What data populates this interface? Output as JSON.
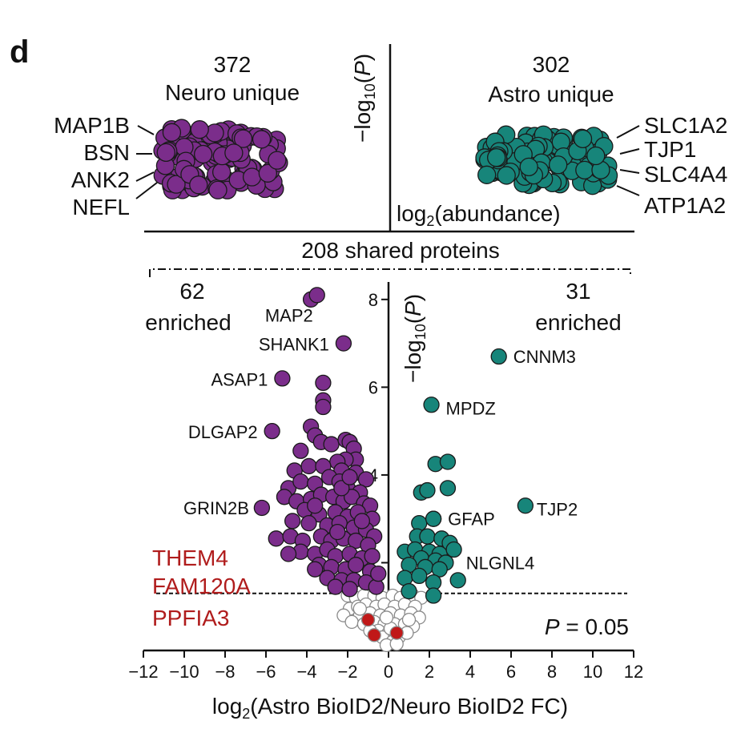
{
  "panel_letter": "d",
  "top": {
    "neuro": {
      "count": "372",
      "label": "Neuro unique"
    },
    "astro": {
      "count": "302",
      "label": "Astro unique"
    },
    "yaxis_label": "−log10(P)",
    "xaxis_label": "log2(abundance)",
    "neuro_genes": [
      "MAP1B",
      "BSN",
      "ANK2",
      "NEFL"
    ],
    "astro_genes": [
      "SLC1A2",
      "TJP1",
      "SLC4A4",
      "ATP1A2"
    ]
  },
  "shared_label": "208 shared proteins",
  "left_enriched": {
    "count": "62",
    "label": "enriched"
  },
  "right_enriched": {
    "count": "31",
    "label": "enriched"
  },
  "threshold_label": "P = 0.05",
  "colors": {
    "neuro": "#7b2d8b",
    "astro": "#17857a",
    "nonsig": "#ffffff",
    "highlight": "#c01818",
    "highlight_text": "#b01c1c"
  },
  "chart_data": {
    "type": "scatter",
    "xlabel": "log2(Astro BioID2/Neuro BioID2 FC)",
    "ylabel": "−log10(P)",
    "xlim": [
      -12,
      12
    ],
    "ylim": [
      0,
      8.8
    ],
    "xticks": [
      -12,
      -10,
      -8,
      -6,
      -4,
      -2,
      0,
      2,
      4,
      6,
      8,
      10,
      12
    ],
    "yticks": [
      2,
      4,
      6,
      8
    ],
    "threshold_y": 1.3,
    "labeled_points": [
      {
        "name": "MAP2",
        "x": -3.5,
        "y": 8.1,
        "group": "neuro"
      },
      {
        "name": "SHANK1",
        "x": -2.2,
        "y": 7.0,
        "group": "neuro"
      },
      {
        "name": "ASAP1",
        "x": -5.2,
        "y": 6.2,
        "group": "neuro"
      },
      {
        "name": "DLGAP2",
        "x": -5.7,
        "y": 5.0,
        "group": "neuro"
      },
      {
        "name": "GRIN2B",
        "x": -6.2,
        "y": 3.25,
        "group": "neuro"
      },
      {
        "name": "CNNM3",
        "x": 5.4,
        "y": 6.7,
        "group": "astro"
      },
      {
        "name": "MPDZ",
        "x": 2.1,
        "y": 5.6,
        "group": "astro"
      },
      {
        "name": "TJP2",
        "x": 6.7,
        "y": 3.3,
        "group": "astro"
      },
      {
        "name": "GFAP",
        "x": 2.2,
        "y": 3.0,
        "group": "astro"
      },
      {
        "name": "NLGNL4",
        "x": 3.4,
        "y": 1.6,
        "group": "astro"
      }
    ],
    "highlighted": [
      {
        "name": "THEM4",
        "x": -1.0,
        "y": 0.7
      },
      {
        "name": "FAM120A",
        "x": -0.7,
        "y": 0.35
      },
      {
        "name": "PPFIA3",
        "x": 0.4,
        "y": 0.4
      }
    ],
    "neuro_points": [
      [
        -3.8,
        8.0
      ],
      [
        -3.2,
        6.1
      ],
      [
        -3.2,
        5.7
      ],
      [
        -3.2,
        5.55
      ],
      [
        -3.8,
        5.1
      ],
      [
        -3.6,
        4.9
      ],
      [
        -3.3,
        4.75
      ],
      [
        -2.8,
        4.7
      ],
      [
        -2.1,
        4.8
      ],
      [
        -1.9,
        4.75
      ],
      [
        -1.7,
        4.6
      ],
      [
        -1.6,
        4.35
      ],
      [
        -2.1,
        4.35
      ],
      [
        -2.5,
        4.3
      ],
      [
        -4.3,
        4.55
      ],
      [
        -4.6,
        4.1
      ],
      [
        -3.9,
        4.2
      ],
      [
        -3.2,
        4.2
      ],
      [
        -2.3,
        4.1
      ],
      [
        -1.6,
        4.05
      ],
      [
        -1.1,
        3.9
      ],
      [
        -4.9,
        3.7
      ],
      [
        -4.3,
        3.85
      ],
      [
        -3.6,
        3.8
      ],
      [
        -2.9,
        3.95
      ],
      [
        -2.4,
        3.85
      ],
      [
        -2.0,
        3.7
      ],
      [
        -1.4,
        3.6
      ],
      [
        -5.1,
        3.5
      ],
      [
        -4.5,
        3.4
      ],
      [
        -3.8,
        3.45
      ],
      [
        -3.3,
        3.55
      ],
      [
        -2.7,
        3.5
      ],
      [
        -2.2,
        3.4
      ],
      [
        -1.8,
        3.5
      ],
      [
        -1.2,
        3.35
      ],
      [
        -0.9,
        3.3
      ],
      [
        -4.1,
        3.2
      ],
      [
        -3.4,
        3.1
      ],
      [
        -2.6,
        3.15
      ],
      [
        -2.0,
        3.05
      ],
      [
        -1.5,
        3.15
      ],
      [
        -0.8,
        3.0
      ],
      [
        -4.7,
        2.95
      ],
      [
        -3.9,
        2.9
      ],
      [
        -3.0,
        2.85
      ],
      [
        -2.4,
        2.9
      ],
      [
        -1.7,
        2.8
      ],
      [
        -1.1,
        2.75
      ],
      [
        -0.7,
        2.6
      ],
      [
        -5.5,
        2.55
      ],
      [
        -4.8,
        2.6
      ],
      [
        -4.2,
        2.5
      ],
      [
        -3.3,
        2.6
      ],
      [
        -2.8,
        2.5
      ],
      [
        -2.2,
        2.55
      ],
      [
        -1.6,
        2.5
      ],
      [
        -1.0,
        2.4
      ],
      [
        -4.3,
        2.25
      ],
      [
        -3.6,
        2.2
      ],
      [
        -3.0,
        2.3
      ],
      [
        -2.6,
        2.15
      ],
      [
        -1.9,
        2.2
      ],
      [
        -1.3,
        2.1
      ],
      [
        -0.8,
        2.15
      ],
      [
        -4.9,
        2.2
      ],
      [
        -3.4,
        1.95
      ],
      [
        -2.8,
        1.9
      ],
      [
        -2.1,
        1.85
      ],
      [
        -1.6,
        1.95
      ],
      [
        -0.9,
        1.8
      ],
      [
        -3.0,
        1.65
      ],
      [
        -2.3,
        1.6
      ],
      [
        -1.7,
        1.6
      ],
      [
        -1.1,
        1.55
      ],
      [
        -0.6,
        1.45
      ],
      [
        -2.6,
        1.45
      ],
      [
        -1.9,
        1.4
      ],
      [
        -3.6,
        1.85
      ],
      [
        -0.5,
        1.75
      ],
      [
        -2.3,
        3.7
      ],
      [
        -1.3,
        2.95
      ],
      [
        -2.5,
        2.7
      ],
      [
        -3.6,
        3.3
      ],
      [
        -1.9,
        3.95
      ]
    ],
    "astro_points": [
      [
        2.3,
        4.25
      ],
      [
        2.9,
        4.3
      ],
      [
        1.6,
        3.6
      ],
      [
        1.9,
        3.65
      ],
      [
        2.9,
        3.7
      ],
      [
        2.2,
        3.0
      ],
      [
        1.5,
        2.9
      ],
      [
        1.4,
        2.6
      ],
      [
        1.9,
        2.6
      ],
      [
        2.6,
        2.55
      ],
      [
        3.0,
        2.45
      ],
      [
        0.8,
        2.25
      ],
      [
        1.3,
        2.3
      ],
      [
        2.0,
        2.25
      ],
      [
        2.5,
        2.2
      ],
      [
        3.2,
        2.3
      ],
      [
        1.6,
        2.1
      ],
      [
        2.3,
        2.05
      ],
      [
        2.8,
        2.0
      ],
      [
        1.0,
        1.95
      ],
      [
        1.8,
        1.9
      ],
      [
        2.5,
        1.85
      ],
      [
        0.8,
        1.65
      ],
      [
        1.5,
        1.7
      ],
      [
        2.2,
        1.55
      ],
      [
        1.0,
        1.35
      ],
      [
        2.2,
        1.25
      ]
    ],
    "nonsig_points": [
      [
        -2.0,
        1.25
      ],
      [
        -1.6,
        1.2
      ],
      [
        -1.2,
        1.25
      ],
      [
        -0.7,
        1.25
      ],
      [
        -0.3,
        1.2
      ],
      [
        0.2,
        1.25
      ],
      [
        0.6,
        1.2
      ],
      [
        1.2,
        1.25
      ],
      [
        1.6,
        1.2
      ],
      [
        -1.9,
        0.95
      ],
      [
        -1.5,
        1.0
      ],
      [
        -1.1,
        1.05
      ],
      [
        -0.6,
        1.0
      ],
      [
        -0.2,
        1.05
      ],
      [
        0.3,
        1.0
      ],
      [
        0.8,
        1.05
      ],
      [
        1.3,
        1.0
      ],
      [
        -2.2,
        0.8
      ],
      [
        -1.4,
        0.8
      ],
      [
        -0.9,
        0.85
      ],
      [
        -0.4,
        0.8
      ],
      [
        0.1,
        0.85
      ],
      [
        0.6,
        0.8
      ],
      [
        1.1,
        0.85
      ],
      [
        1.5,
        0.75
      ],
      [
        -1.8,
        0.65
      ],
      [
        -1.2,
        0.6
      ],
      [
        -0.7,
        0.65
      ],
      [
        -0.2,
        0.6
      ],
      [
        0.3,
        0.6
      ],
      [
        0.8,
        0.6
      ],
      [
        1.2,
        0.55
      ],
      [
        -0.5,
        0.45
      ],
      [
        0.0,
        0.4
      ],
      [
        0.5,
        0.3
      ],
      [
        -0.3,
        0.3
      ],
      [
        0.2,
        0.2
      ],
      [
        -0.1,
        0.12
      ],
      [
        0.1,
        0.5
      ],
      [
        -0.9,
        0.45
      ],
      [
        0.9,
        0.4
      ],
      [
        -1.4,
        0.95
      ],
      [
        1.0,
        0.7
      ],
      [
        -0.1,
        0.75
      ],
      [
        0.4,
        0.15
      ]
    ]
  }
}
